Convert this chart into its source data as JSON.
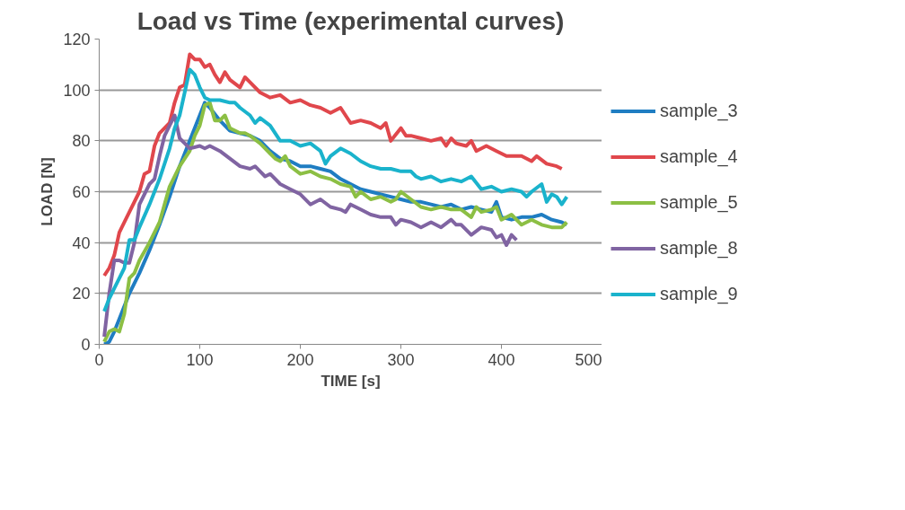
{
  "chart_data": {
    "type": "line",
    "title": "Load vs Time (experimental curves)",
    "xlabel": "TIME [s]",
    "ylabel": "LOAD [N]",
    "xlim": [
      0,
      500
    ],
    "xticks": [
      0,
      100,
      200,
      300,
      400,
      500
    ],
    "ylim": [
      0,
      120
    ],
    "yticks": [
      0,
      20,
      40,
      60,
      80,
      100,
      120
    ],
    "grid": "y",
    "legend": "right",
    "marker": "none",
    "line_style": "solid",
    "series": [
      {
        "name": "sample_3",
        "color": "#1f7dc2",
        "x": [
          5,
          10,
          15,
          20,
          30,
          40,
          50,
          60,
          70,
          80,
          90,
          100,
          105,
          110,
          120,
          130,
          140,
          150,
          160,
          170,
          180,
          190,
          200,
          210,
          220,
          230,
          240,
          250,
          260,
          270,
          280,
          290,
          300,
          310,
          320,
          330,
          340,
          350,
          360,
          370,
          380,
          390,
          395,
          400,
          410,
          420,
          430,
          440,
          450,
          460,
          465
        ],
        "values": [
          0,
          1,
          5,
          10,
          20,
          28,
          37,
          47,
          58,
          70,
          80,
          90,
          95,
          93,
          88,
          84,
          83,
          82,
          80,
          76,
          73,
          72,
          70,
          70,
          69,
          68,
          65,
          63,
          61,
          60,
          59,
          58,
          57,
          56,
          56,
          55,
          54,
          55,
          53,
          54,
          53,
          52,
          56,
          50,
          49,
          50,
          50,
          51,
          49,
          48,
          47
        ]
      },
      {
        "name": "sample_4",
        "color": "#e0474c",
        "x": [
          5,
          10,
          15,
          20,
          30,
          40,
          45,
          50,
          55,
          60,
          70,
          75,
          80,
          85,
          90,
          95,
          100,
          105,
          110,
          115,
          120,
          125,
          130,
          140,
          145,
          150,
          160,
          170,
          180,
          190,
          200,
          210,
          220,
          230,
          240,
          250,
          260,
          270,
          280,
          285,
          290,
          300,
          305,
          310,
          320,
          330,
          340,
          345,
          350,
          355,
          365,
          370,
          375,
          385,
          395,
          405,
          420,
          430,
          435,
          445,
          455,
          460
        ],
        "values": [
          27,
          30,
          35,
          44,
          52,
          60,
          67,
          68,
          78,
          83,
          87,
          95,
          101,
          102,
          114,
          112,
          112,
          109,
          110,
          106,
          103,
          107,
          104,
          101,
          105,
          103,
          99,
          97,
          98,
          95,
          96,
          94,
          93,
          91,
          93,
          87,
          88,
          87,
          85,
          87,
          80,
          85,
          82,
          82,
          81,
          80,
          81,
          78,
          81,
          79,
          78,
          80,
          76,
          78,
          76,
          74,
          74,
          72,
          74,
          71,
          70,
          69
        ]
      },
      {
        "name": "sample_5",
        "color": "#8cbf44",
        "x": [
          5,
          10,
          15,
          20,
          25,
          30,
          35,
          40,
          50,
          60,
          65,
          70,
          80,
          90,
          95,
          100,
          105,
          110,
          115,
          120,
          125,
          130,
          140,
          145,
          150,
          160,
          170,
          175,
          180,
          185,
          190,
          200,
          210,
          220,
          230,
          240,
          250,
          255,
          260,
          270,
          280,
          290,
          295,
          300,
          310,
          320,
          330,
          340,
          350,
          360,
          370,
          375,
          380,
          390,
          395,
          400,
          410,
          420,
          430,
          440,
          450,
          460,
          465
        ],
        "values": [
          1,
          5,
          6,
          5,
          12,
          26,
          28,
          33,
          40,
          48,
          55,
          62,
          70,
          76,
          82,
          86,
          94,
          95,
          88,
          88,
          90,
          85,
          83,
          83,
          82,
          79,
          75,
          73,
          72,
          74,
          70,
          67,
          68,
          66,
          65,
          63,
          62,
          58,
          60,
          57,
          58,
          56,
          57,
          60,
          57,
          54,
          53,
          54,
          53,
          53,
          50,
          54,
          52,
          53,
          54,
          49,
          51,
          47,
          49,
          47,
          46,
          46,
          48
        ]
      },
      {
        "name": "sample_8",
        "color": "#8064a2",
        "x": [
          5,
          10,
          15,
          20,
          25,
          30,
          35,
          40,
          50,
          55,
          60,
          65,
          70,
          75,
          80,
          85,
          90,
          100,
          105,
          110,
          120,
          130,
          140,
          150,
          155,
          160,
          165,
          170,
          180,
          190,
          200,
          210,
          220,
          230,
          240,
          245,
          250,
          260,
          270,
          280,
          290,
          295,
          300,
          310,
          320,
          330,
          340,
          350,
          355,
          360,
          370,
          380,
          390,
          395,
          400,
          405,
          410,
          415
        ],
        "values": [
          3,
          20,
          33,
          33,
          32,
          32,
          40,
          55,
          63,
          65,
          74,
          82,
          86,
          90,
          81,
          79,
          77,
          78,
          77,
          78,
          76,
          73,
          70,
          69,
          70,
          68,
          66,
          67,
          63,
          61,
          59,
          55,
          57,
          54,
          53,
          52,
          55,
          53,
          51,
          50,
          50,
          47,
          49,
          48,
          46,
          48,
          46,
          49,
          47,
          47,
          43,
          46,
          45,
          42,
          43,
          39,
          43,
          41
        ]
      },
      {
        "name": "sample_9",
        "color": "#1ab3cc",
        "x": [
          5,
          10,
          15,
          20,
          25,
          30,
          35,
          40,
          50,
          60,
          70,
          75,
          80,
          90,
          95,
          100,
          105,
          110,
          120,
          130,
          135,
          140,
          150,
          155,
          160,
          170,
          180,
          190,
          200,
          210,
          220,
          225,
          230,
          240,
          250,
          260,
          270,
          280,
          290,
          300,
          310,
          315,
          320,
          330,
          340,
          350,
          360,
          370,
          380,
          390,
          400,
          410,
          420,
          425,
          430,
          440,
          445,
          450,
          455,
          460,
          465
        ],
        "values": [
          13,
          18,
          22,
          26,
          30,
          41,
          41,
          46,
          55,
          65,
          77,
          85,
          90,
          108,
          106,
          101,
          97,
          96,
          96,
          95,
          95,
          93,
          90,
          87,
          89,
          86,
          80,
          80,
          78,
          79,
          76,
          71,
          74,
          77,
          75,
          72,
          70,
          69,
          69,
          68,
          68,
          66,
          65,
          66,
          64,
          65,
          64,
          66,
          61,
          62,
          60,
          61,
          60,
          58,
          60,
          63,
          56,
          59,
          58,
          55,
          58
        ]
      }
    ]
  }
}
